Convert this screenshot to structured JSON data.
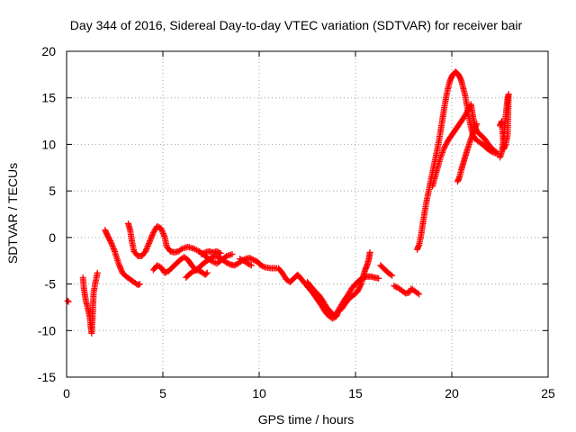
{
  "chart_data": {
    "type": "scatter",
    "title": "Day 344 of 2016, Sidereal Day-to-day VTEC variation (SDTVAR) for receiver bair",
    "xlabel": "GPS time / hours",
    "ylabel": "SDTVAR / TECUs",
    "xlim": [
      0,
      25
    ],
    "ylim": [
      -15,
      20
    ],
    "xticks": [
      0,
      5,
      10,
      15,
      20,
      25
    ],
    "yticks": [
      -15,
      -10,
      -5,
      0,
      5,
      10,
      15,
      20
    ],
    "xtick_labels": [
      "0",
      "5",
      "10",
      "15",
      "20",
      "25"
    ],
    "ytick_labels": [
      "-15",
      "-10",
      "-5",
      "0",
      "5",
      "10",
      "15",
      "20"
    ],
    "grid": true,
    "legend": "none",
    "marker": "+",
    "series_color": "#ff0000",
    "segments": [
      {
        "name": "seg1",
        "points": [
          [
            0.05,
            -6.8
          ],
          [
            0.1,
            -6.9
          ]
        ]
      },
      {
        "name": "seg2",
        "points": [
          [
            0.85,
            -4.3
          ],
          [
            0.9,
            -5.5
          ],
          [
            1.0,
            -6.8
          ],
          [
            1.1,
            -7.6
          ],
          [
            1.2,
            -8.5
          ],
          [
            1.25,
            -9.5
          ],
          [
            1.3,
            -10.3
          ],
          [
            1.35,
            -8.5
          ],
          [
            1.4,
            -6.0
          ],
          [
            1.5,
            -4.8
          ],
          [
            1.6,
            -3.8
          ]
        ]
      },
      {
        "name": "seg3",
        "points": [
          [
            2.0,
            0.8
          ],
          [
            2.1,
            0.3
          ],
          [
            2.3,
            -0.5
          ],
          [
            2.5,
            -1.5
          ],
          [
            2.7,
            -2.8
          ],
          [
            2.9,
            -3.8
          ],
          [
            3.1,
            -4.2
          ],
          [
            3.3,
            -4.5
          ],
          [
            3.5,
            -4.8
          ],
          [
            3.7,
            -5.1
          ],
          [
            3.8,
            -5.0
          ]
        ]
      },
      {
        "name": "seg4",
        "points": [
          [
            3.2,
            1.5
          ],
          [
            3.3,
            0.8
          ],
          [
            3.4,
            -0.5
          ],
          [
            3.5,
            -1.5
          ],
          [
            3.7,
            -2.0
          ],
          [
            3.9,
            -2.0
          ],
          [
            4.1,
            -1.5
          ],
          [
            4.3,
            -0.5
          ],
          [
            4.5,
            0.5
          ],
          [
            4.7,
            1.2
          ],
          [
            4.9,
            1.0
          ],
          [
            5.1,
            0.0
          ],
          [
            5.2,
            -1.0
          ],
          [
            5.4,
            -1.5
          ],
          [
            5.6,
            -1.6
          ],
          [
            5.8,
            -1.5
          ],
          [
            6.0,
            -1.2
          ],
          [
            6.3,
            -1.0
          ],
          [
            6.6,
            -1.2
          ],
          [
            6.9,
            -1.5
          ],
          [
            7.2,
            -2.0
          ],
          [
            7.5,
            -2.5
          ],
          [
            7.8,
            -2.8
          ],
          [
            8.0,
            -2.5
          ],
          [
            8.3,
            -2.0
          ],
          [
            8.6,
            -1.8
          ]
        ]
      },
      {
        "name": "seg5",
        "points": [
          [
            4.5,
            -3.5
          ],
          [
            4.7,
            -3.0
          ],
          [
            4.9,
            -3.2
          ],
          [
            5.1,
            -3.8
          ],
          [
            5.3,
            -3.6
          ],
          [
            5.5,
            -3.2
          ],
          [
            5.7,
            -2.8
          ],
          [
            5.9,
            -2.4
          ],
          [
            6.1,
            -2.1
          ],
          [
            6.3,
            -2.4
          ],
          [
            6.5,
            -3.0
          ],
          [
            6.7,
            -3.5
          ],
          [
            6.9,
            -3.2
          ],
          [
            7.1,
            -2.8
          ],
          [
            7.3,
            -2.5
          ],
          [
            7.5,
            -2.2
          ],
          [
            7.7,
            -2.0
          ],
          [
            7.9,
            -2.1
          ],
          [
            8.1,
            -2.4
          ],
          [
            8.3,
            -2.7
          ],
          [
            8.5,
            -2.9
          ],
          [
            8.7,
            -3.0
          ],
          [
            8.9,
            -2.8
          ],
          [
            9.1,
            -2.5
          ],
          [
            9.3,
            -2.3
          ],
          [
            9.5,
            -2.2
          ],
          [
            9.7,
            -2.4
          ],
          [
            9.9,
            -2.6
          ],
          [
            10.1,
            -3.0
          ],
          [
            10.3,
            -3.2
          ],
          [
            10.6,
            -3.3
          ],
          [
            10.9,
            -3.3
          ]
        ]
      },
      {
        "name": "seg6",
        "points": [
          [
            6.2,
            -4.3
          ],
          [
            6.4,
            -3.9
          ],
          [
            6.6,
            -3.6
          ],
          [
            6.8,
            -3.5
          ],
          [
            7.0,
            -3.7
          ],
          [
            7.2,
            -4.0
          ],
          [
            7.3,
            -3.8
          ]
        ]
      },
      {
        "name": "seg7",
        "points": [
          [
            7.0,
            -1.8
          ],
          [
            7.2,
            -1.6
          ],
          [
            7.4,
            -1.5
          ],
          [
            7.6,
            -1.6
          ],
          [
            7.8,
            -1.5
          ],
          [
            8.0,
            -1.7
          ]
        ]
      },
      {
        "name": "seg8",
        "points": [
          [
            9.0,
            -2.3
          ],
          [
            9.2,
            -2.5
          ],
          [
            9.4,
            -2.8
          ],
          [
            9.6,
            -3.0
          ]
        ]
      },
      {
        "name": "seg9",
        "points": [
          [
            11.0,
            -3.3
          ],
          [
            11.2,
            -3.8
          ],
          [
            11.4,
            -4.5
          ],
          [
            11.6,
            -4.8
          ],
          [
            11.8,
            -4.4
          ],
          [
            12.0,
            -4.0
          ],
          [
            12.2,
            -4.5
          ],
          [
            12.4,
            -5.0
          ],
          [
            12.6,
            -5.5
          ],
          [
            12.8,
            -6.0
          ],
          [
            13.0,
            -6.6
          ],
          [
            13.2,
            -7.2
          ],
          [
            13.4,
            -7.9
          ],
          [
            13.6,
            -8.4
          ],
          [
            13.8,
            -8.7
          ],
          [
            14.0,
            -8.5
          ],
          [
            14.1,
            -8.0
          ],
          [
            14.3,
            -7.6
          ],
          [
            14.5,
            -7.0
          ],
          [
            14.7,
            -6.5
          ],
          [
            14.9,
            -6.2
          ],
          [
            15.1,
            -5.8
          ],
          [
            15.3,
            -5.0
          ],
          [
            15.4,
            -4.2
          ],
          [
            15.5,
            -3.5
          ],
          [
            15.6,
            -3.0
          ],
          [
            15.7,
            -2.3
          ],
          [
            15.75,
            -1.6
          ]
        ]
      },
      {
        "name": "seg10",
        "points": [
          [
            12.5,
            -4.8
          ],
          [
            12.7,
            -5.3
          ],
          [
            12.9,
            -5.8
          ],
          [
            13.1,
            -6.2
          ],
          [
            13.3,
            -6.8
          ],
          [
            13.5,
            -7.5
          ],
          [
            13.7,
            -8.0
          ],
          [
            13.9,
            -8.4
          ],
          [
            14.0,
            -8.2
          ],
          [
            14.2,
            -7.5
          ],
          [
            14.4,
            -6.8
          ],
          [
            14.6,
            -6.2
          ],
          [
            14.8,
            -5.5
          ],
          [
            15.0,
            -5.0
          ],
          [
            15.2,
            -4.6
          ],
          [
            15.4,
            -4.3
          ],
          [
            15.6,
            -4.2
          ],
          [
            15.8,
            -4.2
          ],
          [
            16.0,
            -4.3
          ],
          [
            16.2,
            -4.4
          ]
        ]
      },
      {
        "name": "seg11",
        "points": [
          [
            16.3,
            -3.0
          ],
          [
            16.5,
            -3.4
          ],
          [
            16.7,
            -3.8
          ],
          [
            16.9,
            -4.1
          ]
        ]
      },
      {
        "name": "seg12",
        "points": [
          [
            17.0,
            -5.2
          ],
          [
            17.2,
            -5.4
          ],
          [
            17.4,
            -5.7
          ],
          [
            17.6,
            -6.0
          ],
          [
            17.8,
            -5.9
          ],
          [
            17.9,
            -5.5
          ],
          [
            18.1,
            -5.8
          ],
          [
            18.3,
            -6.1
          ]
        ]
      },
      {
        "name": "seg13",
        "points": [
          [
            18.2,
            -1.3
          ],
          [
            18.3,
            -0.8
          ],
          [
            18.4,
            0.2
          ],
          [
            18.5,
            1.5
          ],
          [
            18.6,
            2.8
          ],
          [
            18.7,
            4.0
          ],
          [
            18.8,
            5.0
          ],
          [
            18.9,
            6.0
          ],
          [
            19.0,
            7.0
          ],
          [
            19.1,
            8.0
          ],
          [
            19.2,
            9.0
          ],
          [
            19.3,
            10.0
          ],
          [
            19.4,
            11.2
          ],
          [
            19.5,
            12.5
          ],
          [
            19.6,
            13.8
          ],
          [
            19.7,
            15.0
          ],
          [
            19.8,
            16.0
          ],
          [
            19.9,
            16.8
          ],
          [
            20.0,
            17.3
          ],
          [
            20.1,
            17.6
          ],
          [
            20.2,
            17.8
          ],
          [
            20.3,
            17.6
          ],
          [
            20.4,
            17.3
          ],
          [
            20.5,
            16.8
          ],
          [
            20.6,
            16.0
          ],
          [
            20.7,
            15.2
          ],
          [
            20.8,
            14.0
          ],
          [
            20.9,
            12.8
          ],
          [
            21.0,
            11.8
          ],
          [
            21.1,
            11.0
          ],
          [
            21.2,
            10.6
          ],
          [
            21.4,
            10.3
          ],
          [
            21.6,
            10.0
          ],
          [
            21.8,
            9.6
          ],
          [
            22.0,
            9.3
          ],
          [
            22.2,
            9.1
          ],
          [
            22.4,
            9.0
          ]
        ]
      },
      {
        "name": "seg14",
        "points": [
          [
            19.0,
            5.5
          ],
          [
            19.2,
            7.0
          ],
          [
            19.4,
            8.5
          ],
          [
            19.6,
            9.6
          ],
          [
            19.8,
            10.4
          ],
          [
            20.0,
            11.0
          ],
          [
            20.2,
            11.6
          ],
          [
            20.4,
            12.2
          ],
          [
            20.6,
            12.8
          ],
          [
            20.8,
            13.5
          ],
          [
            21.0,
            14.3
          ],
          [
            21.1,
            13.0
          ],
          [
            21.2,
            12.0
          ],
          [
            21.3,
            11.4
          ],
          [
            21.5,
            11.0
          ],
          [
            21.7,
            10.6
          ],
          [
            21.9,
            10.0
          ],
          [
            22.1,
            9.5
          ],
          [
            22.3,
            9.2
          ]
        ]
      },
      {
        "name": "seg15",
        "points": [
          [
            20.3,
            6.0
          ],
          [
            20.4,
            6.5
          ],
          [
            20.5,
            7.3
          ],
          [
            20.6,
            8.0
          ],
          [
            20.7,
            8.7
          ],
          [
            20.8,
            9.4
          ],
          [
            20.9,
            10.0
          ],
          [
            21.0,
            10.6
          ],
          [
            21.1,
            11.2
          ],
          [
            21.2,
            11.8
          ],
          [
            21.3,
            12.2
          ]
        ]
      },
      {
        "name": "seg16",
        "points": [
          [
            22.5,
            8.6
          ],
          [
            22.6,
            9.2
          ],
          [
            22.7,
            10.5
          ],
          [
            22.75,
            12.0
          ],
          [
            22.8,
            13.0
          ],
          [
            22.85,
            14.0
          ],
          [
            22.9,
            15.0
          ],
          [
            22.95,
            15.4
          ],
          [
            22.9,
            11.0
          ],
          [
            22.8,
            10.0
          ],
          [
            22.7,
            9.5
          ],
          [
            22.6,
            12.5
          ],
          [
            22.5,
            12.0
          ]
        ]
      }
    ]
  }
}
